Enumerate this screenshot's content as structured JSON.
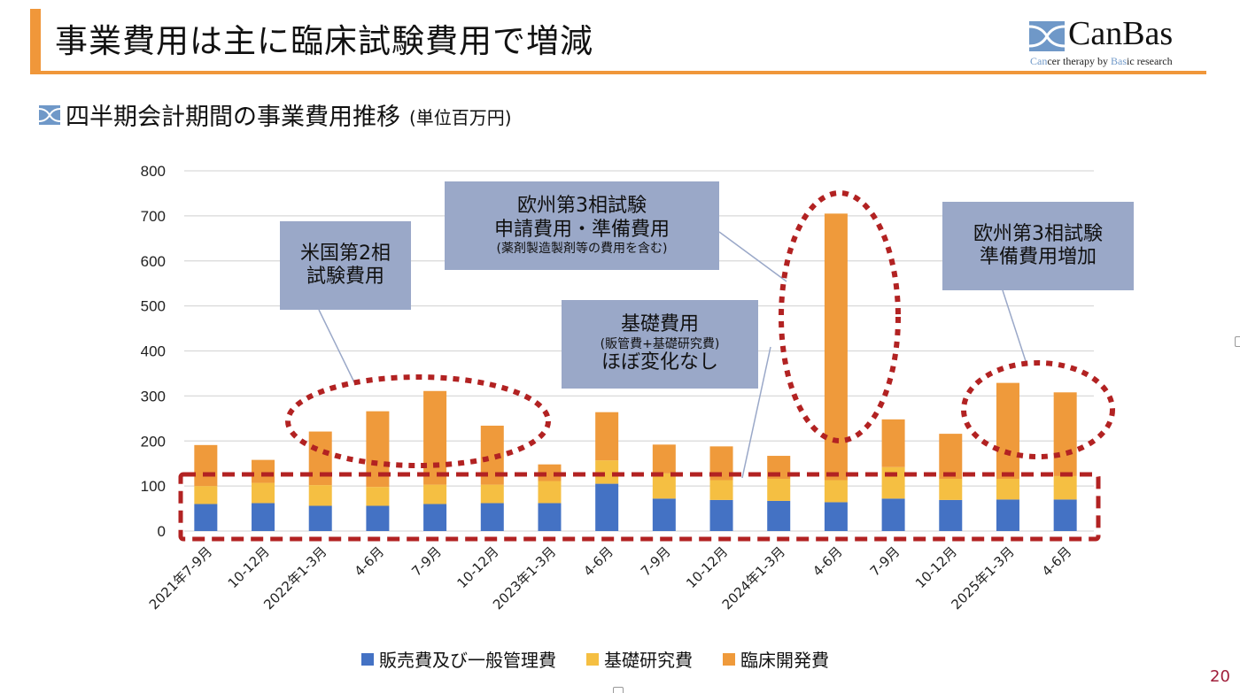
{
  "header": {
    "title": "事業費用は主に臨床試験費用で増減",
    "logo": {
      "name": "CanBas",
      "tagline_parts": [
        {
          "text": "Can",
          "highlight": true
        },
        {
          "text": "cer therapy by ",
          "highlight": false
        },
        {
          "text": "Bas",
          "highlight": true
        },
        {
          "text": "ic research",
          "highlight": false
        }
      ]
    },
    "accent_color": "#f0973a"
  },
  "subtitle": {
    "text": "四半期会計期間の事業費用推移",
    "unit": "(単位百万円)"
  },
  "chart_data": {
    "type": "bar",
    "stacked": true,
    "title": "四半期会計期間の事業費用推移",
    "unit": "百万円",
    "xlabel": "",
    "ylabel": "",
    "ylim": [
      0,
      800
    ],
    "yticks": [
      0,
      100,
      200,
      300,
      400,
      500,
      600,
      700,
      800
    ],
    "grid": true,
    "legend_position": "bottom",
    "categories": [
      "2021年7-9月",
      "10-12月",
      "2022年1-3月",
      "4-6月",
      "7-9月",
      "10-12月",
      "2023年1-3月",
      "4-6月",
      "7-9月",
      "10-12月",
      "2024年1-3月",
      "4-6月",
      "7-9月",
      "10-12月",
      "2025年1-3月",
      "4-6月"
    ],
    "series": [
      {
        "name": "販売費及び一般管理費",
        "color": "#4472c4",
        "values": [
          60,
          62,
          56,
          56,
          60,
          62,
          62,
          105,
          72,
          69,
          67,
          64,
          72,
          69,
          70,
          70
        ]
      },
      {
        "name": "基礎研究費",
        "color": "#f5bf42",
        "values": [
          40,
          45,
          46,
          42,
          43,
          41,
          49,
          52,
          56,
          44,
          49,
          49,
          70,
          47,
          46,
          52
        ]
      },
      {
        "name": "臨床開発費",
        "color": "#ef9a3b",
        "values": [
          91,
          51,
          119,
          168,
          208,
          131,
          37,
          107,
          64,
          75,
          51,
          592,
          106,
          100,
          213,
          186
        ]
      }
    ],
    "annotations": [
      {
        "id": "us-phase2",
        "lines": [
          "米国第2相",
          "試験費用"
        ],
        "small": [],
        "target_categories": [
          2,
          3,
          4,
          5
        ]
      },
      {
        "id": "eu-phase3-application",
        "lines": [
          "欧州第3相試験",
          "申請費用・準備費用"
        ],
        "small": [
          "(薬剤製造製剤等の費用を含む)"
        ],
        "target_categories": [
          11
        ]
      },
      {
        "id": "basic-costs",
        "lines": [
          "基礎費用"
        ],
        "small": [
          "(販管費+基礎研究費)"
        ],
        "lines_after": [
          "ほぼ変化なし"
        ],
        "target_categories": "all"
      },
      {
        "id": "eu-phase3-prep",
        "lines": [
          "欧州第3相試験",
          "準備費用増加"
        ],
        "small": [],
        "target_categories": [
          14,
          15
        ]
      }
    ],
    "highlight_color": "#b22222",
    "callout_color": "#9aa8c8"
  },
  "page_number": "20"
}
